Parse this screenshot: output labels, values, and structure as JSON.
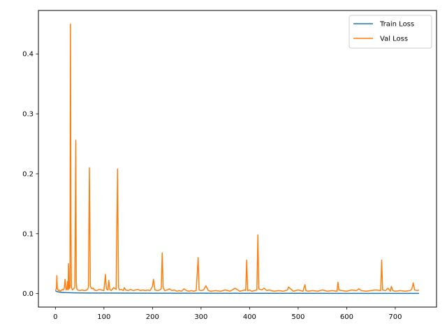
{
  "chart_data": {
    "type": "line",
    "title": "",
    "xlabel": "",
    "ylabel": "",
    "xlim": [
      -35,
      785
    ],
    "ylim": [
      -0.0225,
      0.4725
    ],
    "xticks": [
      0,
      100,
      200,
      300,
      400,
      500,
      600,
      700
    ],
    "yticks": [
      0.0,
      0.1,
      0.2,
      0.3,
      0.4
    ],
    "ytick_labels": [
      "0.0",
      "0.1",
      "0.2",
      "0.3",
      "0.4"
    ],
    "grid": false,
    "legend_position": "top-right",
    "series": [
      {
        "name": "Train Loss",
        "color": "#1f77b4",
        "x": [
          0,
          2,
          5,
          10,
          20,
          40,
          70,
          100,
          150,
          200,
          300,
          400,
          500,
          600,
          700,
          749
        ],
        "y": [
          0.005,
          0.0038,
          0.003,
          0.0022,
          0.0016,
          0.0012,
          0.001,
          0.0009,
          0.0008,
          0.0007,
          0.0006,
          0.0005,
          0.00045,
          0.0004,
          0.00038,
          0.00035
        ]
      },
      {
        "name": "Val Loss",
        "color": "#ff7f0e",
        "x": [
          0,
          2,
          3,
          4,
          6,
          8,
          10,
          12,
          14,
          16,
          18,
          20,
          22,
          24,
          25,
          26,
          27,
          28,
          30,
          31,
          32,
          33,
          35,
          37,
          40,
          42,
          43,
          44,
          46,
          50,
          55,
          60,
          65,
          68,
          70,
          72,
          75,
          78,
          80,
          85,
          90,
          95,
          100,
          103,
          105,
          108,
          110,
          112,
          115,
          120,
          125,
          128,
          130,
          132,
          135,
          140,
          142,
          145,
          150,
          155,
          160,
          165,
          170,
          175,
          180,
          185,
          190,
          195,
          200,
          202,
          205,
          210,
          215,
          218,
          220,
          222,
          225,
          230,
          235,
          240,
          245,
          250,
          255,
          260,
          265,
          270,
          275,
          280,
          285,
          290,
          294,
          296,
          300,
          305,
          310,
          315,
          320,
          330,
          340,
          350,
          360,
          370,
          380,
          390,
          392,
          394,
          396,
          400,
          405,
          410,
          415,
          417,
          419,
          425,
          430,
          435,
          440,
          450,
          460,
          470,
          478,
          480,
          490,
          500,
          510,
          514,
          516,
          520,
          530,
          540,
          550,
          560,
          570,
          580,
          582,
          584,
          590,
          600,
          610,
          620,
          625,
          630,
          640,
          650,
          660,
          670,
          672,
          674,
          680,
          685,
          690,
          692,
          695,
          700,
          710,
          720,
          730,
          733,
          735,
          737,
          740,
          745,
          749
        ],
        "y": [
          0.006,
          0.008,
          0.03,
          0.008,
          0.005,
          0.006,
          0.004,
          0.005,
          0.007,
          0.006,
          0.008,
          0.024,
          0.006,
          0.008,
          0.02,
          0.006,
          0.05,
          0.008,
          0.01,
          0.45,
          0.12,
          0.01,
          0.006,
          0.008,
          0.01,
          0.256,
          0.02,
          0.008,
          0.006,
          0.005,
          0.006,
          0.005,
          0.006,
          0.01,
          0.21,
          0.012,
          0.008,
          0.009,
          0.006,
          0.005,
          0.007,
          0.006,
          0.005,
          0.032,
          0.008,
          0.006,
          0.022,
          0.007,
          0.005,
          0.01,
          0.007,
          0.208,
          0.01,
          0.006,
          0.007,
          0.005,
          0.01,
          0.006,
          0.005,
          0.007,
          0.005,
          0.006,
          0.007,
          0.005,
          0.006,
          0.005,
          0.006,
          0.005,
          0.012,
          0.024,
          0.006,
          0.005,
          0.006,
          0.008,
          0.068,
          0.01,
          0.005,
          0.006,
          0.008,
          0.005,
          0.006,
          0.004,
          0.005,
          0.004,
          0.008,
          0.005,
          0.004,
          0.005,
          0.004,
          0.005,
          0.06,
          0.006,
          0.005,
          0.006,
          0.013,
          0.005,
          0.004,
          0.005,
          0.004,
          0.006,
          0.004,
          0.009,
          0.004,
          0.006,
          0.005,
          0.056,
          0.005,
          0.006,
          0.004,
          0.005,
          0.006,
          0.098,
          0.008,
          0.006,
          0.009,
          0.005,
          0.006,
          0.004,
          0.005,
          0.004,
          0.006,
          0.011,
          0.004,
          0.006,
          0.004,
          0.015,
          0.005,
          0.004,
          0.005,
          0.004,
          0.006,
          0.004,
          0.005,
          0.004,
          0.019,
          0.006,
          0.005,
          0.004,
          0.006,
          0.005,
          0.008,
          0.005,
          0.004,
          0.005,
          0.006,
          0.005,
          0.056,
          0.006,
          0.005,
          0.009,
          0.004,
          0.012,
          0.005,
          0.004,
          0.005,
          0.004,
          0.005,
          0.006,
          0.01,
          0.018,
          0.006,
          0.005,
          0.006
        ]
      }
    ]
  }
}
